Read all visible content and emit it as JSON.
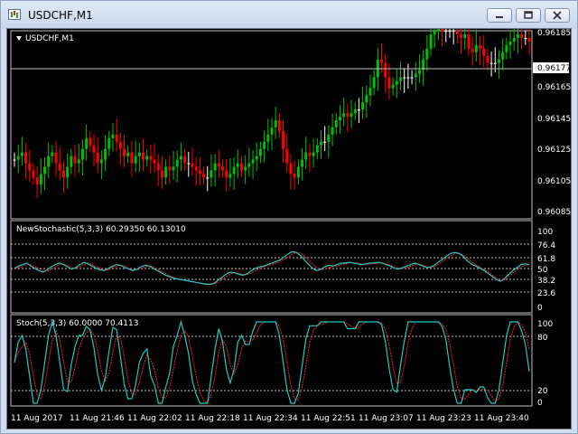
{
  "window": {
    "title": "USDCHF,M1",
    "buttons": {
      "minimize": "minimize-icon",
      "restore": "restore-icon",
      "close": "close-icon"
    }
  },
  "colors": {
    "background": "#000000",
    "bull": "#00c000",
    "bear": "#ff0000",
    "wick_doji": "#ffffff",
    "stoch_main": "#20c8c8",
    "stoch_signal": "#ff2020",
    "grid": "#c0c0c0",
    "price_marker_bg": "#ffffff"
  },
  "main_panel": {
    "symbol_label": "USDCHF,M1",
    "current_price": "0.96177",
    "price_ticks": [
      "0.96185",
      "0.96165",
      "0.96145",
      "0.96125",
      "0.96105",
      "0.96085"
    ]
  },
  "indicator1": {
    "label": "NewStochastic(5,3,3) 60.29350 60.13010",
    "levels": [
      "76.4",
      "61.8",
      "50",
      "38.2",
      "23.6"
    ],
    "ticks": [
      "100",
      "0"
    ]
  },
  "indicator2": {
    "label": "Stoch(5,3,3) 60.0000 70.4113",
    "levels": [
      "80",
      "20"
    ],
    "ticks": [
      "100",
      "0"
    ]
  },
  "time_axis": {
    "labels": [
      "11 Aug 2017",
      "11 Aug 21:46",
      "11 Aug 22:02",
      "11 Aug 22:18",
      "11 Aug 22:34",
      "11 Aug 22:51",
      "11 Aug 23:07",
      "11 Aug 23:23",
      "11 Aug 23:40"
    ]
  },
  "chart_data": {
    "type": "candlestick",
    "symbol": "USDCHF",
    "timeframe": "M1",
    "close_series": [
      0.96114,
      0.96116,
      0.96118,
      0.96112,
      0.96108,
      0.96104,
      0.961,
      0.96106,
      0.9611,
      0.96116,
      0.96118,
      0.96112,
      0.96108,
      0.96104,
      0.9611,
      0.96116,
      0.96112,
      0.96114,
      0.9612,
      0.96126,
      0.96122,
      0.96118,
      0.96112,
      0.96114,
      0.9612,
      0.96126,
      0.96128,
      0.96124,
      0.9612,
      0.96116,
      0.96118,
      0.96112,
      0.96116,
      0.96118,
      0.96114,
      0.96116,
      0.96114,
      0.96112,
      0.96108,
      0.96104,
      0.9611,
      0.96108,
      0.9611,
      0.96114,
      0.96116,
      0.96112,
      0.96112,
      0.9611,
      0.96108,
      0.96106,
      0.96104,
      0.96104,
      0.96108,
      0.96112,
      0.9611,
      0.96108,
      0.96104,
      0.96106,
      0.9611,
      0.96112,
      0.96108,
      0.9611,
      0.96112,
      0.96114,
      0.96116,
      0.9612,
      0.96124,
      0.96128,
      0.96132,
      0.96136,
      0.9613,
      0.9612,
      0.96112,
      0.96106,
      0.96104,
      0.9611,
      0.96114,
      0.96118,
      0.96116,
      0.96118,
      0.96122,
      0.96124,
      0.96124,
      0.96128,
      0.96132,
      0.96136,
      0.96138,
      0.9614,
      0.96138,
      0.9614,
      0.96142,
      0.96142,
      0.96146,
      0.9615,
      0.96154,
      0.9616,
      0.9617,
      0.96168,
      0.9616,
      0.96154,
      0.96156,
      0.96158,
      0.9616,
      0.9616,
      0.9616,
      0.9616,
      0.96162,
      0.96164,
      0.9617,
      0.96176,
      0.96184,
      0.96186,
      0.96188,
      0.96186,
      0.96186,
      0.96186,
      0.96186,
      0.96184,
      0.96182,
      0.96184,
      0.96176,
      0.96174,
      0.96178,
      0.96176,
      0.96172,
      0.96168,
      0.96168,
      0.96168,
      0.9617,
      0.96174,
      0.96178,
      0.9618,
      0.96182,
      0.96184,
      0.96182,
      0.96182,
      0.9618
    ],
    "newstoch_main": [
      55,
      58,
      60,
      62,
      58,
      55,
      52,
      50,
      53,
      57,
      60,
      62,
      60,
      57,
      54,
      56,
      60,
      63,
      61,
      58,
      55,
      53,
      52,
      55,
      58,
      60,
      59,
      56,
      54,
      52,
      54,
      57,
      59,
      58,
      55,
      52,
      49,
      46,
      44,
      42,
      41,
      40,
      39,
      38,
      37,
      36,
      35,
      34,
      34,
      36,
      40,
      44,
      48,
      50,
      49,
      47,
      46,
      48,
      52,
      55,
      57,
      58,
      60,
      62,
      64,
      66,
      70,
      74,
      77,
      76,
      72,
      66,
      60,
      55,
      52,
      54,
      57,
      59,
      58,
      60,
      62,
      62,
      63,
      62,
      61,
      60,
      61,
      62,
      62,
      63,
      62,
      60,
      58,
      55,
      54,
      56,
      58,
      60,
      62,
      60,
      58,
      56,
      57,
      60,
      64,
      68,
      72,
      75,
      76,
      74,
      70,
      64,
      60,
      58,
      55,
      52,
      48,
      44,
      40,
      38,
      42,
      47,
      52,
      56,
      60,
      61,
      60
    ],
    "newstoch_signal": [
      54,
      56,
      58,
      60,
      60,
      57,
      55,
      52,
      51,
      54,
      57,
      60,
      61,
      59,
      56,
      55,
      57,
      60,
      62,
      60,
      57,
      55,
      53,
      53,
      56,
      58,
      59,
      58,
      55,
      53,
      53,
      55,
      57,
      58,
      57,
      54,
      51,
      48,
      45,
      43,
      41,
      40,
      39,
      38,
      37,
      36,
      35,
      35,
      34,
      35,
      37,
      41,
      45,
      48,
      49,
      48,
      47,
      47,
      49,
      52,
      55,
      57,
      59,
      60,
      62,
      64,
      67,
      70,
      74,
      76,
      75,
      71,
      66,
      60,
      56,
      53,
      54,
      56,
      58,
      58,
      60,
      61,
      62,
      62,
      62,
      61,
      60,
      61,
      61,
      62,
      62,
      61,
      59,
      57,
      55,
      55,
      56,
      58,
      60,
      61,
      59,
      57,
      56,
      58,
      61,
      65,
      69,
      72,
      75,
      75,
      72,
      68,
      63,
      59,
      57,
      53,
      50,
      46,
      42,
      39,
      40,
      44,
      49,
      53,
      57,
      59,
      60
    ]
  }
}
